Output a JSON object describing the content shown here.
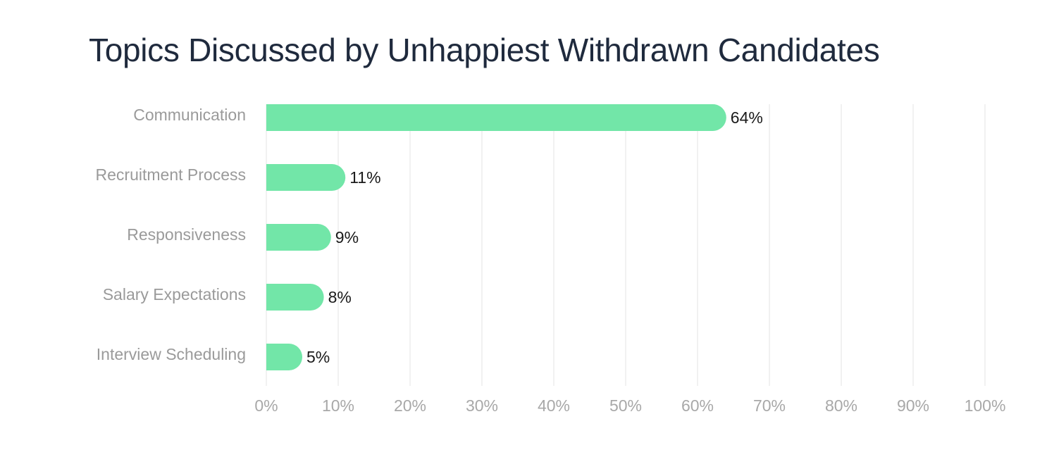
{
  "chart_data": {
    "type": "bar",
    "orientation": "horizontal",
    "title": "Topics Discussed by Unhappiest Withdrawn Candidates",
    "categories": [
      "Communication",
      "Recruitment Process",
      "Responsiveness",
      "Salary Expectations",
      "Interview Scheduling"
    ],
    "values": [
      64,
      11,
      9,
      8,
      5
    ],
    "value_labels": [
      "64%",
      "11%",
      "9%",
      "8%",
      "5%"
    ],
    "xlim": [
      0,
      100
    ],
    "xticks": [
      0,
      10,
      20,
      30,
      40,
      50,
      60,
      70,
      80,
      90,
      100
    ],
    "xtick_labels": [
      "0%",
      "10%",
      "20%",
      "30%",
      "40%",
      "50%",
      "60%",
      "70%",
      "80%",
      "90%",
      "100%"
    ],
    "xlabel": "",
    "ylabel": "",
    "grid": "vertical",
    "legend": "none",
    "bar_color": "#72e6a8"
  }
}
